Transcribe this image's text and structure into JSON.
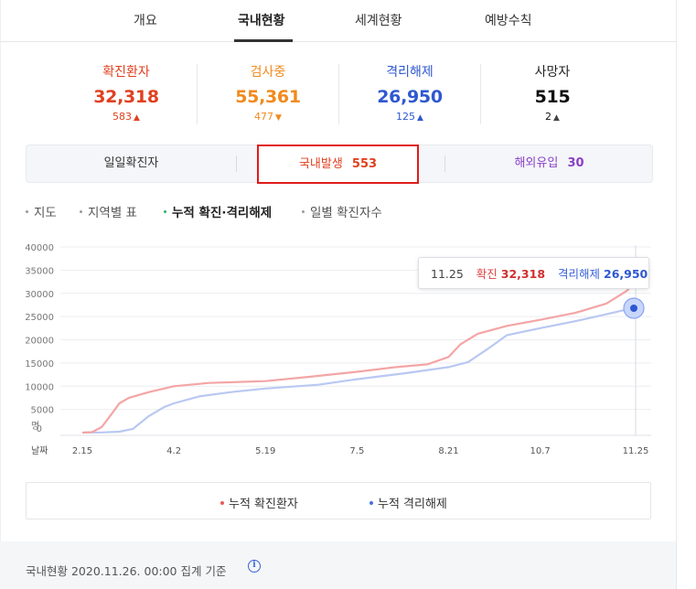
{
  "tabs": [
    {
      "label": "개요"
    },
    {
      "label": "국내현황"
    },
    {
      "label": "세계현황"
    },
    {
      "label": "예방수칙"
    }
  ],
  "stats": [
    {
      "label": "확진환자",
      "value": "32,318",
      "delta": "583",
      "arrow": "▲",
      "color": "#e0401f"
    },
    {
      "label": "검사중",
      "value": "55,361",
      "delta": "477",
      "arrow": "▼",
      "color": "#f08a1c"
    },
    {
      "label": "격리해제",
      "value": "26,950",
      "delta": "125",
      "arrow": "▲",
      "color": "#2f58d0"
    },
    {
      "label": "사망자",
      "value": "515",
      "delta": "2",
      "arrow": "▲",
      "color": "#111111"
    }
  ],
  "segment": {
    "daily_label": "일일확진자",
    "domestic_label": "국내발생",
    "domestic_value": "553",
    "overseas_label": "해외유입",
    "overseas_value": "30"
  },
  "subtabs": [
    {
      "label": "지도"
    },
    {
      "label": "지역별 표"
    },
    {
      "label": "누적 확진·격리해제"
    },
    {
      "label": "일별 확진자수"
    }
  ],
  "tooltip": {
    "date": "11.25",
    "confirmed_label": "확진",
    "confirmed_value": "32,318",
    "released_label": "격리해제",
    "released_value": "26,950"
  },
  "chart_data": {
    "type": "line",
    "y_unit_label": "명",
    "x_axis_label": "날짜",
    "ylim": [
      0,
      40000
    ],
    "y_ticks": [
      0,
      5000,
      10000,
      15000,
      20000,
      25000,
      30000,
      35000,
      40000
    ],
    "x_ticks": [
      "2.15",
      "4.2",
      "5.19",
      "7.5",
      "8.21",
      "10.7",
      "11.25"
    ],
    "series": [
      {
        "name": "누적 확진환자",
        "color": "#f4a5a5",
        "points": [
          [
            "2.15",
            0
          ],
          [
            "2.20",
            100
          ],
          [
            "2.25",
            1200
          ],
          [
            "3.1",
            4000
          ],
          [
            "3.5",
            6300
          ],
          [
            "3.10",
            7500
          ],
          [
            "3.20",
            8700
          ],
          [
            "4.2",
            10000
          ],
          [
            "4.20",
            10700
          ],
          [
            "5.19",
            11100
          ],
          [
            "6.10",
            12000
          ],
          [
            "7.5",
            13100
          ],
          [
            "7.25",
            14100
          ],
          [
            "8.10",
            14700
          ],
          [
            "8.21",
            16300
          ],
          [
            "8.27",
            19000
          ],
          [
            "9.5",
            21300
          ],
          [
            "9.20",
            23000
          ],
          [
            "10.7",
            24300
          ],
          [
            "10.25",
            25800
          ],
          [
            "11.10",
            27800
          ],
          [
            "11.20",
            30400
          ],
          [
            "11.25",
            32318
          ]
        ]
      },
      {
        "name": "누적 격리해제",
        "color": "#b9c8f2",
        "points": [
          [
            "2.15",
            0
          ],
          [
            "2.25",
            30
          ],
          [
            "3.5",
            200
          ],
          [
            "3.12",
            800
          ],
          [
            "3.20",
            3500
          ],
          [
            "3.28",
            5500
          ],
          [
            "4.2",
            6300
          ],
          [
            "4.15",
            7800
          ],
          [
            "5.1",
            8700
          ],
          [
            "5.19",
            9500
          ],
          [
            "6.15",
            10300
          ],
          [
            "7.5",
            11500
          ],
          [
            "7.30",
            12800
          ],
          [
            "8.21",
            14100
          ],
          [
            "8.31",
            15200
          ],
          [
            "9.10",
            18000
          ],
          [
            "9.20",
            21000
          ],
          [
            "10.7",
            22500
          ],
          [
            "10.25",
            24000
          ],
          [
            "11.10",
            25500
          ],
          [
            "11.25",
            26950
          ]
        ]
      }
    ]
  },
  "legend": [
    {
      "label": "누적 확진환자",
      "color": "#e85a5a"
    },
    {
      "label": "누적 격리해제",
      "color": "#4a6fe0"
    }
  ],
  "footer": {
    "text": "국내현황 2020.11.26. 00:00 집계 기준",
    "info_icon": "info-icon"
  }
}
